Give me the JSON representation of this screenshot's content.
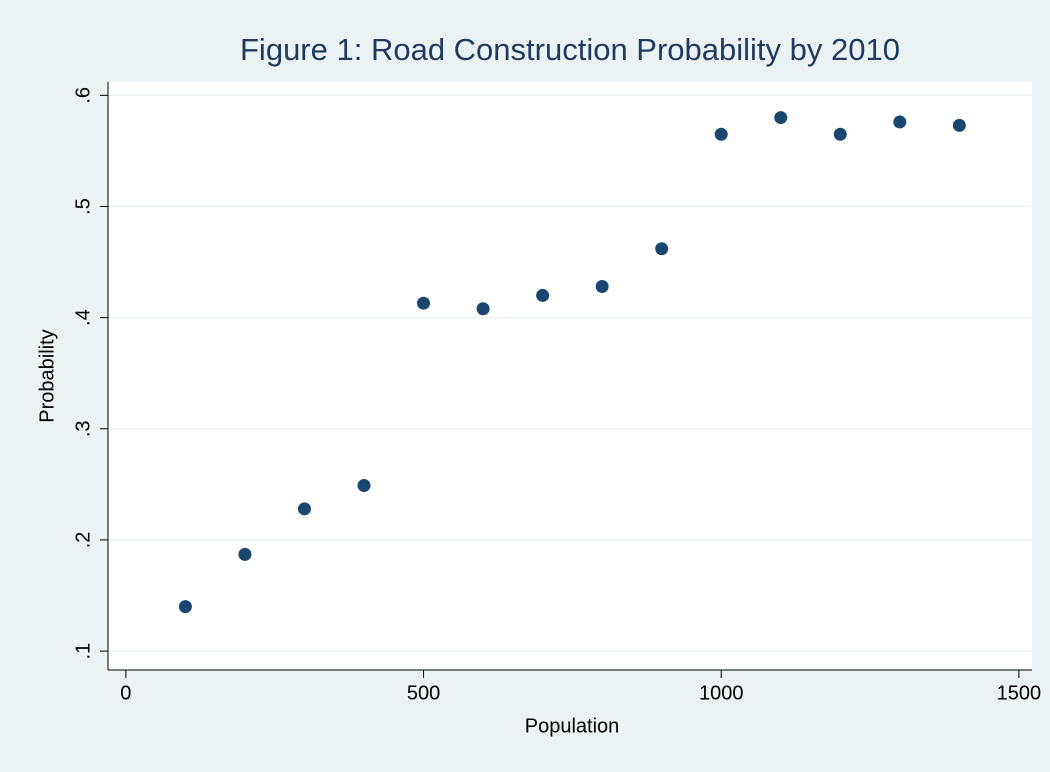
{
  "chart_data": {
    "type": "scatter",
    "title": "Figure 1: Road Construction Probability by 2010",
    "x_label": "Population",
    "y_label": "Probability",
    "x": [
      100,
      200,
      300,
      400,
      500,
      600,
      700,
      800,
      900,
      1000,
      1100,
      1200,
      1300,
      1400
    ],
    "values": [
      0.14,
      0.187,
      0.228,
      0.249,
      0.413,
      0.408,
      0.42,
      0.428,
      0.462,
      0.565,
      0.58,
      0.565,
      0.576,
      0.573
    ],
    "color": "#1a476f",
    "xlim": [
      -30,
      1522
    ],
    "xticks": [
      0,
      500,
      1000,
      1500
    ],
    "ylim": [
      0.083,
      0.612
    ],
    "yticks": [
      {
        "value": 0.1,
        "label": ".1"
      },
      {
        "value": 0.2,
        "label": ".2"
      },
      {
        "value": 0.3,
        "label": ".3"
      },
      {
        "value": 0.4,
        "label": ".4"
      },
      {
        "value": 0.5,
        "label": ".5"
      },
      {
        "value": 0.6,
        "label": ".6"
      }
    ],
    "grid": true
  }
}
